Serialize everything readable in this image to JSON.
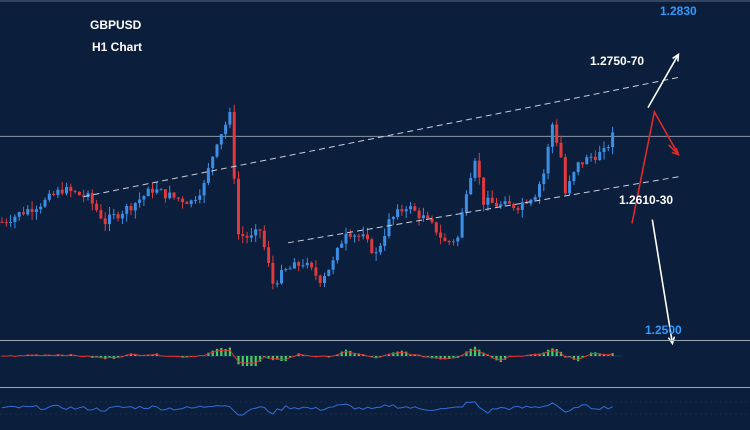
{
  "header": {
    "symbol": "GBPUSD",
    "timeframe": "H1 Chart"
  },
  "levels": {
    "upper_target": "1.2830",
    "resistance_zone": "1.2750-70",
    "support_zone": "1.2610-30",
    "lower_target": "1.2500"
  },
  "colors": {
    "background": "#0b1e3c",
    "bull_candle": "#3b8fe6",
    "bear_candle": "#e03a3a",
    "channel": "#c8d0dc",
    "price_line": "#8a96a8",
    "target_text": "#2e9bff",
    "up_arrow": "#ffffff",
    "red_arrow": "#e02a2a",
    "macd_hist": "#3fd06a",
    "macd_signal": "#e03030",
    "osc_line": "#2f6fd8"
  },
  "chart_data": {
    "type": "candlestick",
    "symbol": "GBPUSD",
    "timeframe": "H1",
    "ylim": [
      1.246,
      1.286
    ],
    "current_price": 1.2705,
    "channel": {
      "upper": [
        [
          19,
          1.2631
        ],
        [
          158,
          1.2778
        ]
      ],
      "lower": [
        [
          0,
          1.2515
        ],
        [
          158,
          1.2656
        ]
      ]
    },
    "scenarios": [
      {
        "from": [
          140,
          1.275
        ],
        "to": [
          148,
          1.283
        ]
      },
      {
        "from": [
          140,
          1.2635
        ],
        "to": [
          148,
          1.2757
        ],
        "then_to": [
          155,
          1.2707
        ]
      },
      {
        "from": [
          141,
          1.2615
        ],
        "to": [
          148,
          1.25
        ]
      }
    ],
    "close_path": [
      [
        0,
        1.26
      ],
      [
        10,
        1.2625
      ],
      [
        14,
        1.264
      ],
      [
        20,
        1.263
      ],
      [
        24,
        1.26
      ],
      [
        30,
        1.262
      ],
      [
        35,
        1.264
      ],
      [
        40,
        1.263
      ],
      [
        44,
        1.2625
      ],
      [
        47,
        1.2645
      ],
      [
        50,
        1.27
      ],
      [
        53,
        1.273
      ],
      [
        55,
        1.2585
      ],
      [
        58,
        1.258
      ],
      [
        60,
        1.259
      ],
      [
        63,
        1.2525
      ],
      [
        66,
        1.254
      ],
      [
        70,
        1.255
      ],
      [
        74,
        1.253
      ],
      [
        77,
        1.255
      ],
      [
        80,
        1.259
      ],
      [
        84,
        1.258
      ],
      [
        87,
        1.256
      ],
      [
        90,
        1.26
      ],
      [
        94,
        1.262
      ],
      [
        98,
        1.2605
      ],
      [
        101,
        1.259
      ],
      [
        103,
        1.2575
      ],
      [
        106,
        1.258
      ],
      [
        108,
        1.264
      ],
      [
        110,
        1.268
      ],
      [
        112,
        1.2625
      ],
      [
        116,
        1.262
      ],
      [
        120,
        1.262
      ],
      [
        124,
        1.2635
      ],
      [
        126,
        1.266
      ],
      [
        128,
        1.272
      ],
      [
        130,
        1.268
      ],
      [
        131,
        1.2635
      ],
      [
        134,
        1.267
      ],
      [
        137,
        1.268
      ],
      [
        140,
        1.2685
      ],
      [
        142,
        1.2705
      ]
    ]
  }
}
